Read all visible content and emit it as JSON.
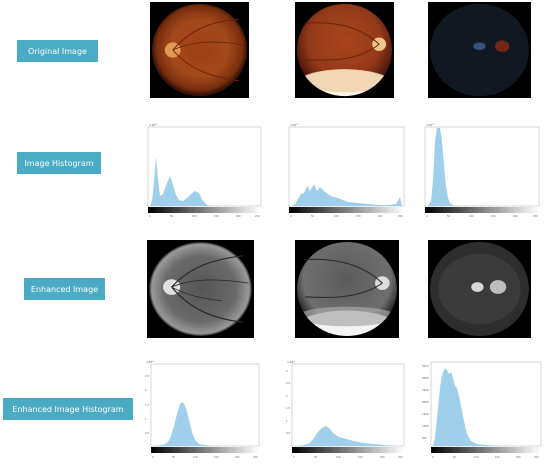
{
  "rows": [
    {
      "label": "Original Image"
    },
    {
      "label": "Image Histogram"
    },
    {
      "label": "Enhanced Image"
    },
    {
      "label": "Enhanced Image Histogram"
    }
  ],
  "histogram_axis": {
    "x_ticks": [
      "0",
      "50",
      "100",
      "150",
      "200",
      "250"
    ]
  },
  "histograms": [
    {
      "y_exp": "×10⁴",
      "y_ticks": []
    },
    {
      "y_exp": "×10⁴",
      "y_ticks": []
    },
    {
      "y_exp": "×10⁴",
      "y_ticks": []
    },
    {
      "y_exp": "×10⁴",
      "y_ticks": [
        "2.5",
        "2",
        "1.5",
        "1",
        "0.5"
      ]
    },
    {
      "y_exp": "×10⁴",
      "y_ticks": [
        "3",
        "2.5",
        "2",
        "1.5",
        "1",
        "0.5"
      ]
    },
    {
      "y_exp": "",
      "y_ticks": [
        "3500",
        "3000",
        "2500",
        "2000",
        "1500",
        "1000",
        "500"
      ]
    }
  ],
  "colors": {
    "label_bg": "#4aabc4",
    "histogram_fill": "#9fcfea"
  }
}
